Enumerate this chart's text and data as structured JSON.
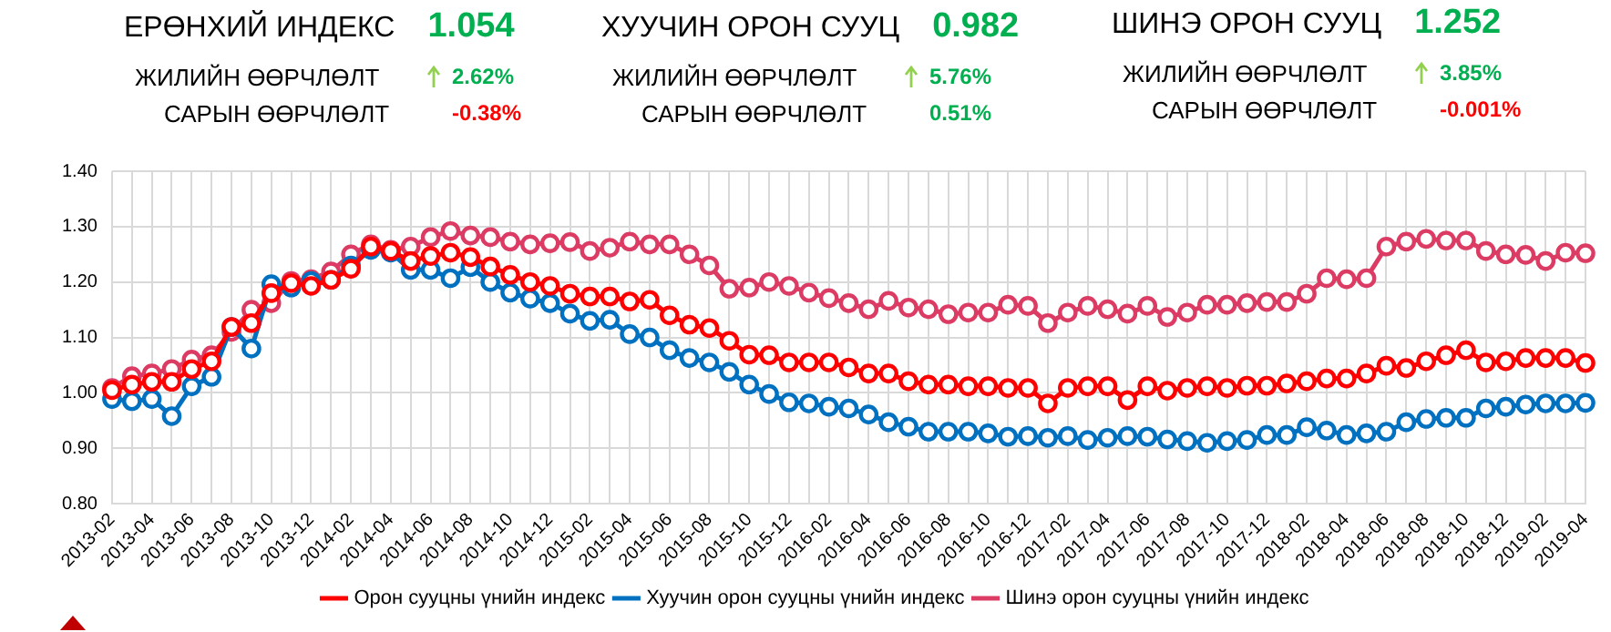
{
  "chart_data": {
    "type": "line",
    "annotations": [
      "ЕРӨНХИЙ ИНДЕКС",
      "1.054",
      "ЖИЛИЙН ӨӨРЧЛӨЛТ",
      "2.62%",
      "САРЫН ӨӨРЧЛӨЛТ",
      "-0.38%",
      "ХУУЧИН ОРОН СУУЦ",
      "0.982",
      "ЖИЛИЙН ӨӨРЧЛӨЛТ",
      "5.76%",
      "САРЫН ӨӨРЧЛӨЛТ",
      "0.51%",
      "ШИНЭ ОРОН СУУЦ",
      "1.252",
      "ЖИЛИЙН ӨӨРЧЛӨЛТ",
      "3.85%",
      "САРЫН ӨӨРЧЛӨЛТ",
      "-0.001%"
    ],
    "categories": [
      "2013-02",
      null,
      "2013-04",
      null,
      "2013-06",
      null,
      "2013-08",
      null,
      "2013-10",
      null,
      "2013-12",
      null,
      "2014-02",
      null,
      "2014-04",
      null,
      "2014-06",
      null,
      "2014-08",
      null,
      "2014-10",
      null,
      "2014-12",
      null,
      "2015-02",
      null,
      "2015-04",
      null,
      "2015-06",
      null,
      "2015-08",
      null,
      "2015-10",
      null,
      "2015-12",
      null,
      "2016-02",
      null,
      "2016-04",
      null,
      "2016-06",
      null,
      "2016-08",
      null,
      "2016-10",
      null,
      "2016-12",
      null,
      "2017-02",
      null,
      "2017-04",
      null,
      "2017-06",
      null,
      "2017-08",
      null,
      "2017-10",
      null,
      "2017-12",
      null,
      "2018-02",
      null,
      "2018-04",
      null,
      "2018-06",
      null,
      "2018-08",
      null,
      "2018-10",
      null,
      "2018-12",
      null,
      "2019-02",
      null,
      "2019-04"
    ],
    "series": [
      {
        "name": "Орон сууцны үнийн индекс",
        "color": "#ff0000",
        "values": [
          1.005,
          1.015,
          1.02,
          1.02,
          1.043,
          1.057,
          1.119,
          1.126,
          1.18,
          1.198,
          1.193,
          1.204,
          1.224,
          1.264,
          1.256,
          1.238,
          1.247,
          1.253,
          1.245,
          1.228,
          1.213,
          1.2,
          1.193,
          1.179,
          1.174,
          1.174,
          1.165,
          1.168,
          1.14,
          1.123,
          1.117,
          1.094,
          1.069,
          1.068,
          1.055,
          1.055,
          1.055,
          1.046,
          1.035,
          1.035,
          1.021,
          1.015,
          1.015,
          1.012,
          1.012,
          1.009,
          1.009,
          0.981,
          1.009,
          1.012,
          1.012,
          0.987,
          1.012,
          1.004,
          1.009,
          1.012,
          1.009,
          1.013,
          1.013,
          1.017,
          1.021,
          1.026,
          1.026,
          1.035,
          1.049,
          1.045,
          1.057,
          1.068,
          1.077,
          1.055,
          1.057,
          1.063,
          1.063,
          1.063,
          1.054
        ]
      },
      {
        "name": "Хуучин орон сууцны үнийн индекс",
        "color": "#0070c0",
        "values": [
          0.989,
          0.985,
          0.989,
          0.958,
          1.012,
          1.029,
          1.119,
          1.08,
          1.196,
          1.19,
          1.202,
          1.204,
          1.23,
          1.258,
          1.253,
          1.222,
          1.222,
          1.207,
          1.227,
          1.2,
          1.181,
          1.17,
          1.162,
          1.143,
          1.13,
          1.132,
          1.106,
          1.1,
          1.077,
          1.063,
          1.055,
          1.038,
          1.015,
          0.998,
          0.983,
          0.981,
          0.975,
          0.972,
          0.961,
          0.947,
          0.939,
          0.93,
          0.93,
          0.93,
          0.927,
          0.921,
          0.922,
          0.919,
          0.922,
          0.915,
          0.919,
          0.922,
          0.921,
          0.916,
          0.913,
          0.91,
          0.913,
          0.915,
          0.924,
          0.924,
          0.938,
          0.932,
          0.924,
          0.927,
          0.93,
          0.947,
          0.953,
          0.955,
          0.955,
          0.972,
          0.975,
          0.979,
          0.981,
          0.981,
          0.982
        ]
      },
      {
        "name": "Шинэ орон сууцны үнийн индекс",
        "color": "#dc3c64",
        "values": [
          1.009,
          1.03,
          1.035,
          1.043,
          1.06,
          1.068,
          1.11,
          1.15,
          1.162,
          1.202,
          1.205,
          1.219,
          1.25,
          1.268,
          1.258,
          1.264,
          1.281,
          1.292,
          1.284,
          1.281,
          1.273,
          1.268,
          1.27,
          1.272,
          1.256,
          1.262,
          1.273,
          1.268,
          1.268,
          1.25,
          1.23,
          1.188,
          1.19,
          1.2,
          1.193,
          1.181,
          1.171,
          1.162,
          1.151,
          1.166,
          1.154,
          1.151,
          1.142,
          1.145,
          1.145,
          1.159,
          1.157,
          1.126,
          1.145,
          1.157,
          1.151,
          1.143,
          1.157,
          1.137,
          1.145,
          1.159,
          1.159,
          1.162,
          1.164,
          1.164,
          1.179,
          1.207,
          1.205,
          1.207,
          1.264,
          1.273,
          1.278,
          1.275,
          1.275,
          1.256,
          1.25,
          1.249,
          1.238,
          1.253,
          1.252
        ]
      }
    ],
    "ylim": [
      0.8,
      1.4
    ],
    "yticks": [
      {
        "value": 0.8,
        "label": "0.80"
      },
      {
        "value": 0.9,
        "label": "0.90"
      },
      {
        "value": 1.0,
        "label": "1.00"
      },
      {
        "value": 1.1,
        "label": "1.10"
      },
      {
        "value": 1.2,
        "label": "1.20"
      },
      {
        "value": 1.3,
        "label": "1.30"
      },
      {
        "value": 1.4,
        "label": "1.40"
      }
    ],
    "grid": true,
    "legend": "bottom",
    "marker": "circle",
    "line_style": "solid"
  }
}
